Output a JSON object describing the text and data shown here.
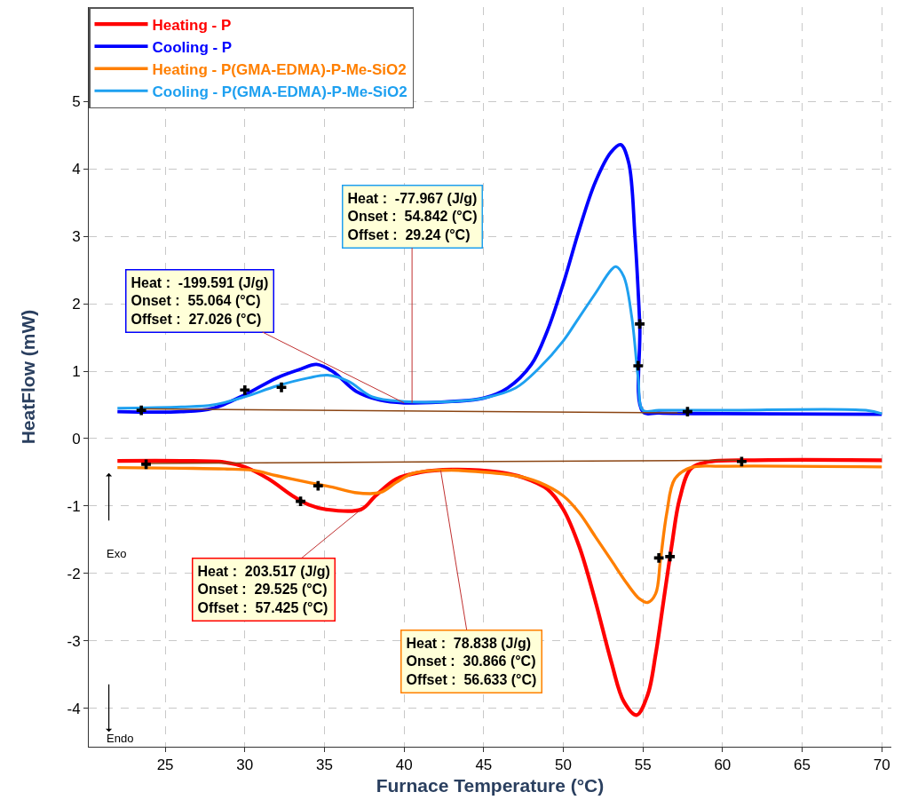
{
  "chart_data": {
    "type": "line",
    "xlabel": "Furnace Temperature (°C)",
    "ylabel": "HeatFlow (mW)",
    "xlim": [
      20.2,
      70.6
    ],
    "ylim": [
      -4.57,
      6.4
    ],
    "xticks": [
      25,
      30,
      35,
      40,
      45,
      50,
      55,
      60,
      65,
      70
    ],
    "yticks": [
      -4,
      -3,
      -2,
      -1,
      0,
      1,
      2,
      3,
      4,
      5
    ],
    "grid": true,
    "legend": "top left",
    "line_style": "solid",
    "series": [
      {
        "name": "Heating - P",
        "color": "#ff0000",
        "x": [
          22,
          26,
          28.7,
          30,
          31.5,
          33,
          34,
          35.1,
          37.3,
          38.2,
          39.5,
          41,
          43,
          46,
          47.5,
          49,
          50,
          51,
          52,
          53,
          53.8,
          54.6,
          55.3,
          55.8,
          56.3,
          56.8,
          57.3,
          58,
          59,
          62,
          70
        ],
        "values": [
          -0.33,
          -0.33,
          -0.35,
          -0.42,
          -0.6,
          -0.85,
          -0.98,
          -1.05,
          -1.05,
          -0.85,
          -0.6,
          -0.5,
          -0.46,
          -0.5,
          -0.58,
          -0.75,
          -1.05,
          -1.6,
          -2.4,
          -3.3,
          -3.9,
          -4.1,
          -3.8,
          -3.2,
          -2.4,
          -1.6,
          -0.9,
          -0.45,
          -0.35,
          -0.32,
          -0.32
        ]
      },
      {
        "name": "Cooling - P",
        "color": "#0000ff",
        "x": [
          22,
          26,
          28,
          30,
          32,
          33.5,
          34.5,
          35.5,
          37,
          38.5,
          40,
          43,
          45,
          46.5,
          48,
          49,
          50,
          51,
          52,
          53,
          53.6,
          54.1,
          54.5,
          54.8,
          55,
          56,
          60,
          70
        ],
        "values": [
          0.4,
          0.4,
          0.45,
          0.65,
          0.9,
          1.03,
          1.1,
          1.0,
          0.7,
          0.57,
          0.53,
          0.55,
          0.6,
          0.75,
          1.1,
          1.6,
          2.3,
          3.1,
          3.8,
          4.25,
          4.36,
          4.1,
          3.0,
          1.7,
          0.4,
          0.38,
          0.37,
          0.36
        ]
      },
      {
        "name": "Heating - P(GMA-EDMA)-P-Me-SiO2",
        "color": "#ff7f00",
        "x": [
          22,
          26,
          28.7,
          30.5,
          32,
          34,
          35.5,
          36.9,
          38.5,
          39.5,
          40.5,
          42,
          44,
          47,
          48.5,
          50,
          51,
          52,
          53,
          54,
          54.8,
          55.3,
          55.8,
          56.1,
          56.5,
          57,
          58,
          60,
          70
        ],
        "values": [
          -0.43,
          -0.44,
          -0.45,
          -0.47,
          -0.55,
          -0.65,
          -0.72,
          -0.8,
          -0.8,
          -0.65,
          -0.52,
          -0.47,
          -0.48,
          -0.55,
          -0.65,
          -0.85,
          -1.1,
          -1.45,
          -1.8,
          -2.15,
          -2.38,
          -2.43,
          -2.3,
          -1.8,
          -1.1,
          -0.6,
          -0.43,
          -0.41,
          -0.42
        ]
      },
      {
        "name": "Cooling - P(GMA-EDMA)-P-Me-SiO2",
        "color": "#1ea0f0",
        "x": [
          22,
          26,
          28,
          30,
          32,
          34,
          35.2,
          36.5,
          38,
          40,
          43,
          45,
          47,
          48.5,
          50,
          51,
          52,
          53,
          53.3,
          53.8,
          54.3,
          54.7,
          55,
          56,
          60,
          69,
          70
        ],
        "values": [
          0.45,
          0.47,
          0.5,
          0.62,
          0.78,
          0.9,
          0.94,
          0.85,
          0.62,
          0.55,
          0.55,
          0.6,
          0.75,
          1.05,
          1.45,
          1.8,
          2.15,
          2.5,
          2.55,
          2.4,
          1.8,
          0.9,
          0.42,
          0.42,
          0.42,
          0.42,
          0.37
        ]
      },
      {
        "color": "#8b4513",
        "x": [
          23.5,
          57.5
        ],
        "values": [
          0.44,
          0.38
        ]
      },
      {
        "color": "#8b4513",
        "x": [
          23.5,
          61
        ],
        "values": [
          -0.37,
          -0.32
        ]
      },
      {
        "type": "scatter",
        "marker": "cross",
        "color": "#000000",
        "x": [
          23.5,
          57.8,
          23.8,
          61.2,
          30,
          32.3,
          54.8,
          54.7,
          33.5,
          34.6,
          56,
          56.7
        ],
        "values": [
          0.42,
          0.4,
          -0.38,
          -0.34,
          0.72,
          0.76,
          1.7,
          1.08,
          -0.93,
          -0.7,
          -1.77,
          -1.75
        ]
      }
    ],
    "annotations": [
      {
        "text": "Heat :  203.517 (J/g)\nOnset :  29.525 (°C)\nOffset :  57.425 (°C)",
        "x": 37.3,
        "y": -1.05
      },
      {
        "text": "Heat :  -199.591 (J/g)\nOnset :  55.064 (°C)\nOffset :  27.026 (°C)",
        "x": 40,
        "y": 0.53
      },
      {
        "text": "Heat :  78.838 (J/g)\nOnset :  30.866 (°C)\nOffset :  56.633 (°C)",
        "x": 42.3,
        "y": -0.47
      },
      {
        "text": "Heat :  -77.967 (J/g)\nOnset :  54.842 (°C)\nOffset :  29.24 (°C)",
        "x": 40.5,
        "y": 0.53
      },
      "Exo",
      "Endo"
    ]
  }
}
